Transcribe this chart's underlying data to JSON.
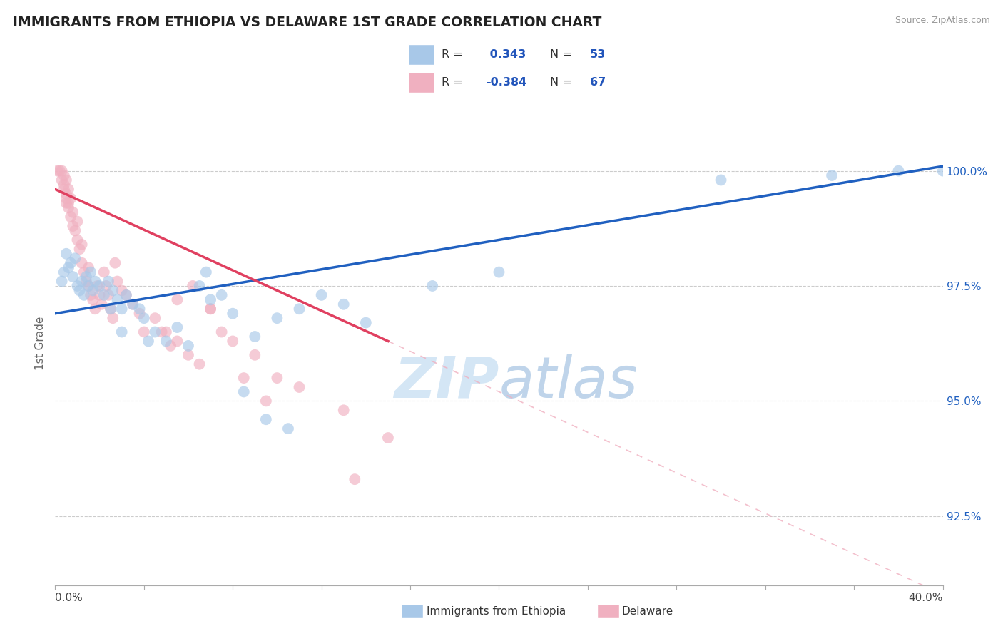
{
  "title": "IMMIGRANTS FROM ETHIOPIA VS DELAWARE 1ST GRADE CORRELATION CHART",
  "source_text": "Source: ZipAtlas.com",
  "ylabel": "1st Grade",
  "y_ticks": [
    92.5,
    95.0,
    97.5,
    100.0
  ],
  "y_min": 91.0,
  "y_max": 101.5,
  "x_min": 0.0,
  "x_max": 40.0,
  "blue_R": 0.343,
  "blue_N": 53,
  "pink_R": -0.384,
  "pink_N": 67,
  "blue_color": "#a8c8e8",
  "pink_color": "#f0b0c0",
  "blue_line_color": "#2060c0",
  "pink_line_color": "#e04060",
  "watermark_text": "ZIPatlas",
  "watermark_color": "#d0e4f4",
  "legend_R_color": "#2255bb",
  "blue_scatter_x": [
    0.3,
    0.4,
    0.5,
    0.6,
    0.7,
    0.8,
    0.9,
    1.0,
    1.1,
    1.2,
    1.3,
    1.4,
    1.5,
    1.6,
    1.7,
    1.8,
    2.0,
    2.2,
    2.4,
    2.6,
    2.8,
    3.0,
    3.2,
    3.5,
    3.8,
    4.0,
    4.5,
    5.0,
    5.5,
    6.0,
    6.5,
    7.0,
    8.0,
    9.0,
    10.0,
    11.0,
    12.0,
    13.0,
    14.0,
    17.0,
    20.0,
    30.0,
    35.0,
    38.0,
    40.0,
    2.5,
    3.0,
    4.2,
    6.8,
    7.5,
    8.5,
    9.5,
    10.5
  ],
  "blue_scatter_y": [
    97.6,
    97.8,
    98.2,
    97.9,
    98.0,
    97.7,
    98.1,
    97.5,
    97.4,
    97.6,
    97.3,
    97.7,
    97.5,
    97.8,
    97.4,
    97.6,
    97.5,
    97.3,
    97.6,
    97.4,
    97.2,
    97.0,
    97.3,
    97.1,
    97.0,
    96.8,
    96.5,
    96.3,
    96.6,
    96.2,
    97.5,
    97.2,
    96.9,
    96.4,
    96.8,
    97.0,
    97.3,
    97.1,
    96.7,
    97.5,
    97.8,
    99.8,
    99.9,
    100.0,
    100.0,
    97.0,
    96.5,
    96.3,
    97.8,
    97.3,
    95.2,
    94.6,
    94.4
  ],
  "pink_scatter_x": [
    0.1,
    0.2,
    0.3,
    0.3,
    0.4,
    0.4,
    0.5,
    0.5,
    0.5,
    0.6,
    0.6,
    0.7,
    0.7,
    0.8,
    0.8,
    0.9,
    1.0,
    1.0,
    1.1,
    1.2,
    1.2,
    1.3,
    1.4,
    1.5,
    1.5,
    1.6,
    1.7,
    1.8,
    1.9,
    2.0,
    2.1,
    2.2,
    2.3,
    2.4,
    2.5,
    2.6,
    2.7,
    2.8,
    3.0,
    3.2,
    3.5,
    3.8,
    4.0,
    4.5,
    5.0,
    5.5,
    6.0,
    6.5,
    7.0,
    8.0,
    9.0,
    10.0,
    11.0,
    13.0,
    15.0,
    0.4,
    0.5,
    0.6,
    5.5,
    6.2,
    4.8,
    5.2,
    9.5,
    7.5,
    7.0,
    8.5,
    13.5
  ],
  "pink_scatter_y": [
    100.0,
    100.0,
    99.8,
    100.0,
    99.7,
    99.9,
    99.5,
    99.8,
    99.3,
    99.2,
    99.6,
    99.0,
    99.4,
    98.8,
    99.1,
    98.7,
    98.5,
    98.9,
    98.3,
    98.0,
    98.4,
    97.8,
    97.6,
    97.5,
    97.9,
    97.3,
    97.2,
    97.0,
    97.5,
    97.3,
    97.1,
    97.8,
    97.5,
    97.3,
    97.0,
    96.8,
    98.0,
    97.6,
    97.4,
    97.3,
    97.1,
    96.9,
    96.5,
    96.8,
    96.5,
    96.3,
    96.0,
    95.8,
    97.0,
    96.3,
    96.0,
    95.5,
    95.3,
    94.8,
    94.2,
    99.6,
    99.4,
    99.3,
    97.2,
    97.5,
    96.5,
    96.2,
    95.0,
    96.5,
    97.0,
    95.5,
    93.3
  ]
}
